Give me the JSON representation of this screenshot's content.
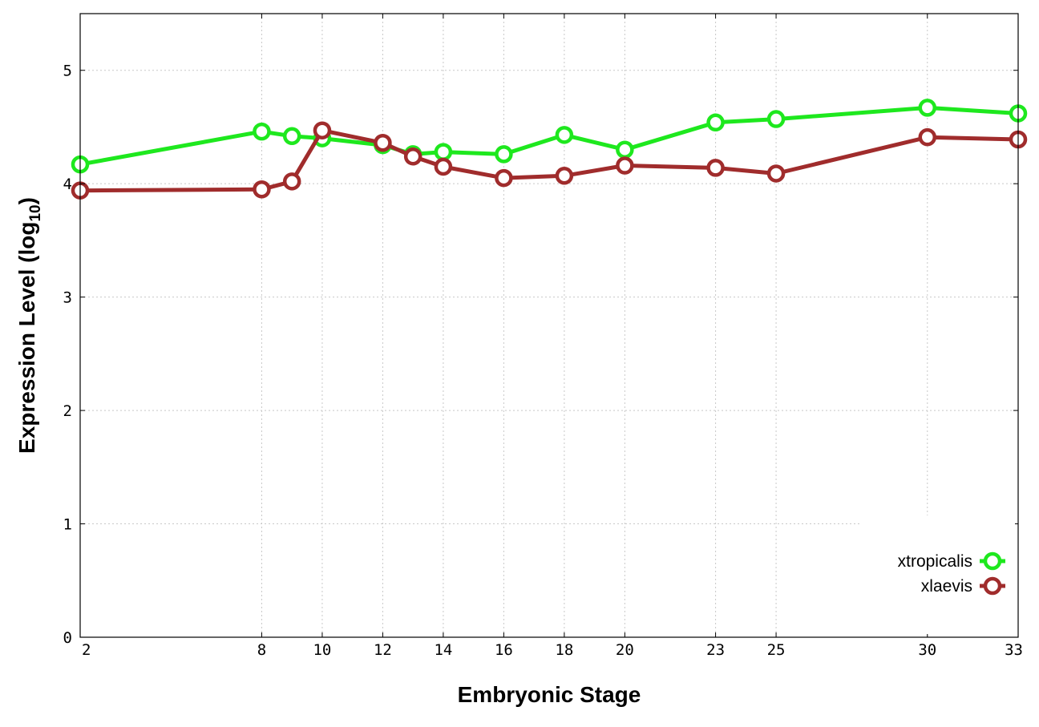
{
  "chart_data": {
    "type": "line",
    "title": "",
    "xlabel": "Embryonic Stage",
    "ylabel": "Expression Level (log",
    "ylabel_subscript": "10",
    "ylabel_suffix": ")",
    "x": [
      2,
      8,
      9,
      10,
      12,
      13,
      14,
      16,
      18,
      20,
      23,
      25,
      30,
      33
    ],
    "x_tick_labels": [
      "2",
      "8",
      "10",
      "12",
      "14",
      "16",
      "18",
      "20",
      "23",
      "25",
      "30",
      "33"
    ],
    "x_ticks": [
      2,
      8,
      10,
      12,
      14,
      16,
      18,
      20,
      23,
      25,
      30,
      33
    ],
    "xlim": [
      2,
      33
    ],
    "y_ticks": [
      0,
      1,
      2,
      3,
      4,
      5
    ],
    "y_tick_labels": [
      "0",
      "1",
      "2",
      "3",
      "4",
      "5"
    ],
    "ylim": [
      0,
      5.5
    ],
    "grid": true,
    "legend_position": "bottom-right",
    "series": [
      {
        "name": "xtropicalis",
        "color": "#1ee81e",
        "values": [
          4.17,
          4.46,
          4.42,
          4.4,
          4.34,
          4.26,
          4.28,
          4.26,
          4.43,
          4.3,
          4.54,
          4.57,
          4.67,
          4.62
        ]
      },
      {
        "name": "xlaevis",
        "color": "#a02c2c",
        "values": [
          3.94,
          3.95,
          4.02,
          4.47,
          4.36,
          4.24,
          4.15,
          4.05,
          4.07,
          4.16,
          4.14,
          4.09,
          4.41,
          4.39
        ]
      }
    ]
  }
}
